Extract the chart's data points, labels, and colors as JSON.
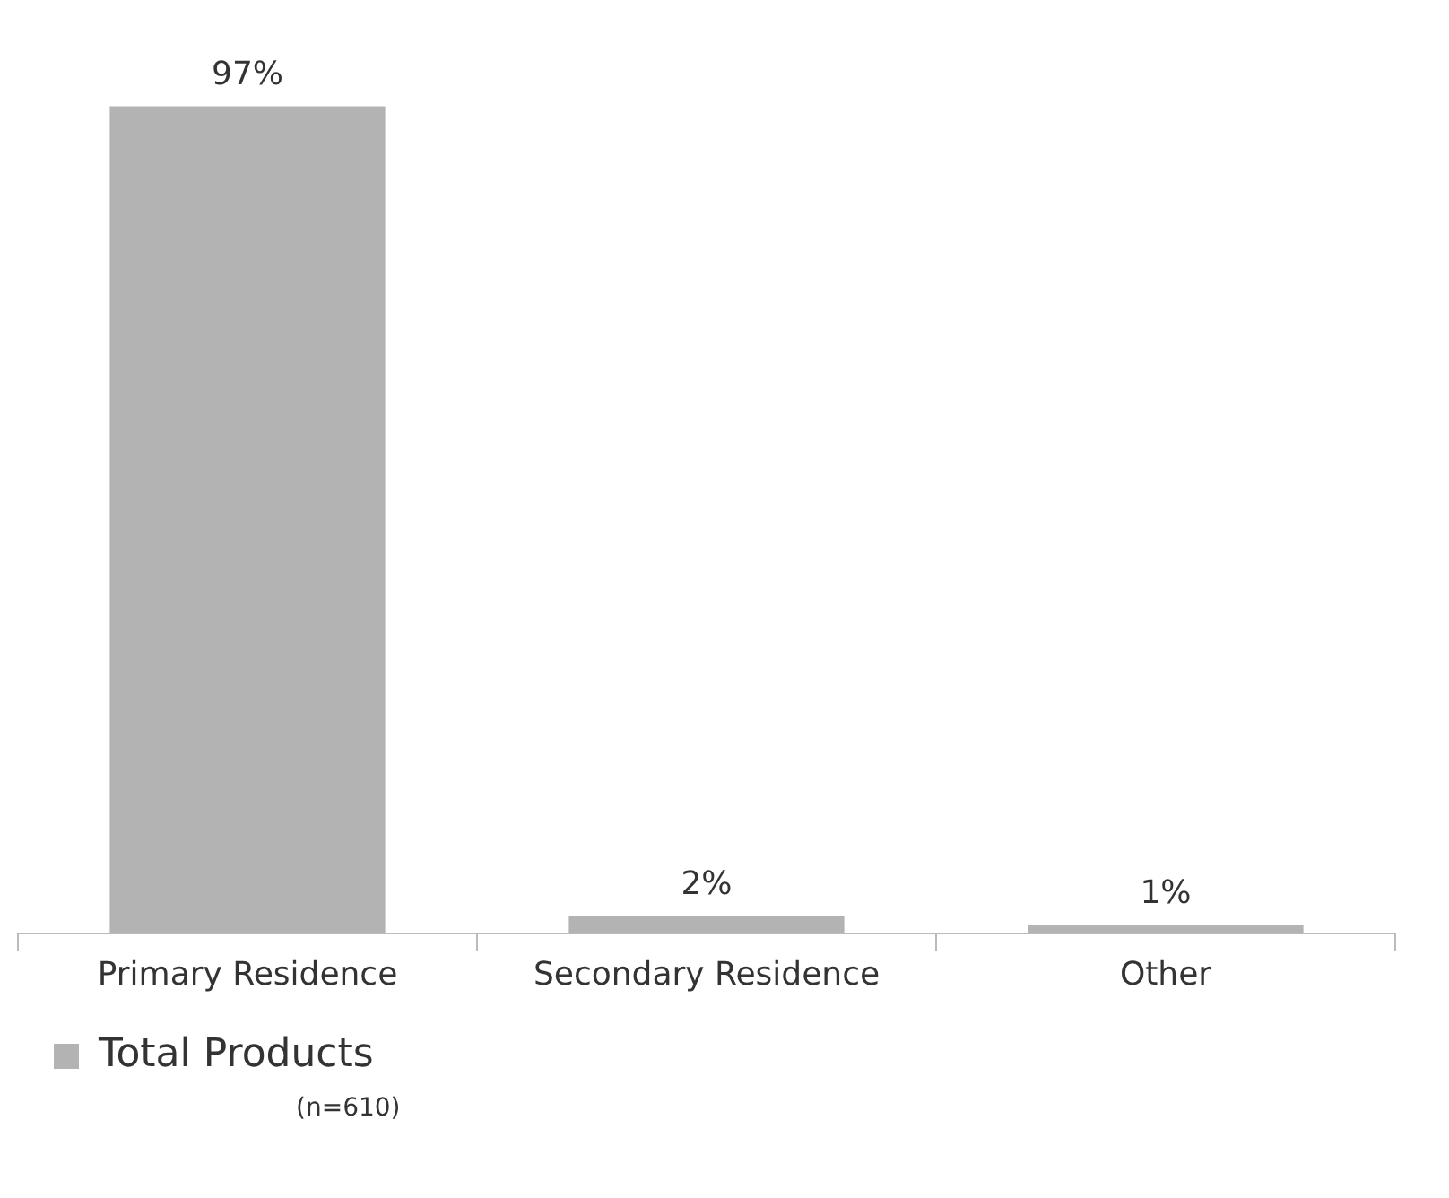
{
  "chart_data": {
    "type": "bar",
    "categories": [
      "Primary Residence",
      "Secondary Residence",
      "Other"
    ],
    "series": [
      {
        "name": "Total Products",
        "color": "#b3b3b3",
        "values": [
          97,
          2,
          1
        ],
        "value_labels": [
          "97%",
          "2%",
          "1%"
        ]
      }
    ],
    "legend": "bottom",
    "annotations": [
      "(n=610)"
    ]
  }
}
